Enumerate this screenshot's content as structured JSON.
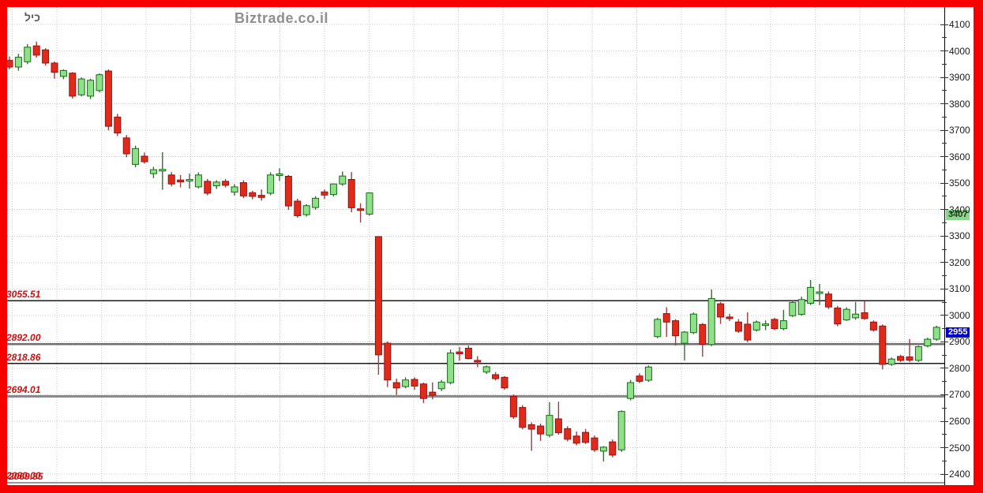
{
  "header": {
    "symbol": "כיל",
    "title": "Biztrade.co.il"
  },
  "axis": {
    "yticks": [
      4100,
      4000,
      3900,
      3800,
      3700,
      3600,
      3500,
      3400,
      3300,
      3200,
      3100,
      3000,
      2900,
      2800,
      2700,
      2600,
      2500,
      2400
    ],
    "minor_tick_step": 50,
    "last_price_badge": {
      "value": "2955",
      "bg": "#0000cc",
      "fg": "#ffffff"
    },
    "level_badge": {
      "value": "3407",
      "bg": "#8ed48e",
      "fg": "#1c3a1c"
    }
  },
  "support_levels": [
    {
      "label": "3055.51",
      "price": 3055.51,
      "color": "#1a1a1a",
      "width": 1.2
    },
    {
      "label": "2892.00",
      "price": 2892.0,
      "color": "#6e6e6e",
      "width": 2.6
    },
    {
      "label": "2818.86",
      "price": 2818.86,
      "color": "#1a1a1a",
      "width": 1.4
    },
    {
      "label": "2694.01",
      "price": 2694.01,
      "color": "#8a8a8a",
      "width": 3
    }
  ],
  "bottom_labels": [
    "2080.00",
    "2069.85"
  ],
  "colors": {
    "up_fill": "#90e08a",
    "up_border": "#156d15",
    "up_wick": "#3a6b3a",
    "down_fill": "#e02a1a",
    "down_border": "#991111",
    "down_wick": "#994040",
    "grid": "#c9c9c9",
    "frame": "#f70000",
    "label_red": "#cc1111"
  },
  "chart_data": {
    "type": "candlestick",
    "title": "Biztrade.co.il",
    "symbol": "כיל",
    "last_price": 2955,
    "ylim": [
      2400,
      4100
    ],
    "yticks": [
      2400,
      2500,
      2600,
      2700,
      2800,
      2900,
      3000,
      3100,
      3200,
      3300,
      3400,
      3500,
      3600,
      3700,
      3800,
      3900,
      4000,
      4100
    ],
    "grid": true,
    "legend": "none",
    "xlabels_visible": false,
    "support_lines": [
      3055.51,
      2892.0,
      2818.86,
      2694.01
    ],
    "candles_format": [
      "open",
      "high",
      "low",
      "close"
    ],
    "candles": [
      [
        3964,
        3979,
        3930,
        3939
      ],
      [
        3939,
        3989,
        3925,
        3976
      ],
      [
        3959,
        4026,
        3950,
        4014
      ],
      [
        4019,
        4035,
        3975,
        3984
      ],
      [
        4004,
        4010,
        3945,
        3954
      ],
      [
        3954,
        3960,
        3895,
        3919
      ],
      [
        3904,
        3930,
        3893,
        3926
      ],
      [
        3916,
        3920,
        3820,
        3829
      ],
      [
        3834,
        3900,
        3828,
        3894
      ],
      [
        3829,
        3895,
        3818,
        3889
      ],
      [
        3850,
        3915,
        3843,
        3910
      ],
      [
        3924,
        3930,
        3700,
        3715
      ],
      [
        3750,
        3762,
        3678,
        3690
      ],
      [
        3671,
        3682,
        3598,
        3611
      ],
      [
        3571,
        3642,
        3560,
        3631
      ],
      [
        3602,
        3616,
        3574,
        3581
      ],
      [
        3536,
        3562,
        3519,
        3551
      ],
      [
        3548,
        3617,
        3475,
        3549
      ],
      [
        3531,
        3542,
        3488,
        3497
      ],
      [
        3512,
        3531,
        3484,
        3505
      ],
      [
        3510,
        3536,
        3479,
        3511
      ],
      [
        3486,
        3541,
        3480,
        3531
      ],
      [
        3507,
        3516,
        3454,
        3462
      ],
      [
        3490,
        3511,
        3478,
        3504
      ],
      [
        3507,
        3516,
        3484,
        3492
      ],
      [
        3466,
        3496,
        3453,
        3486
      ],
      [
        3502,
        3511,
        3444,
        3452
      ],
      [
        3464,
        3471,
        3439,
        3450
      ],
      [
        3454,
        3476,
        3434,
        3446
      ],
      [
        3462,
        3541,
        3454,
        3531
      ],
      [
        3530,
        3556,
        3508,
        3532
      ],
      [
        3526,
        3531,
        3399,
        3414
      ],
      [
        3432,
        3441,
        3369,
        3377
      ],
      [
        3381,
        3421,
        3374,
        3415
      ],
      [
        3408,
        3451,
        3399,
        3443
      ],
      [
        3467,
        3476,
        3440,
        3455
      ],
      [
        3457,
        3499,
        3450,
        3497
      ],
      [
        3497,
        3544,
        3490,
        3527
      ],
      [
        3514,
        3542,
        3390,
        3407
      ],
      [
        3400,
        3424,
        3351,
        3396
      ],
      [
        3383,
        3465,
        3377,
        3463
      ],
      [
        3298,
        3298,
        2776,
        2851
      ],
      [
        2895,
        2901,
        2729,
        2756
      ],
      [
        2746,
        2761,
        2699,
        2726
      ],
      [
        2731,
        2766,
        2724,
        2756
      ],
      [
        2758,
        2766,
        2719,
        2733
      ],
      [
        2741,
        2746,
        2669,
        2686
      ],
      [
        2710,
        2747,
        2683,
        2698
      ],
      [
        2723,
        2756,
        2714,
        2748
      ],
      [
        2746,
        2871,
        2739,
        2858
      ],
      [
        2862,
        2881,
        2829,
        2855
      ],
      [
        2876,
        2886,
        2834,
        2837
      ],
      [
        2827,
        2846,
        2804,
        2824
      ],
      [
        2786,
        2811,
        2779,
        2806
      ],
      [
        2776,
        2786,
        2754,
        2761
      ],
      [
        2766,
        2771,
        2719,
        2726
      ],
      [
        2694,
        2701,
        2609,
        2617
      ],
      [
        2652,
        2661,
        2569,
        2577
      ],
      [
        2587,
        2596,
        2488,
        2570
      ],
      [
        2582,
        2591,
        2526,
        2552
      ],
      [
        2547,
        2672,
        2539,
        2622
      ],
      [
        2609,
        2674,
        2549,
        2557
      ],
      [
        2572,
        2581,
        2524,
        2532
      ],
      [
        2544,
        2561,
        2509,
        2517
      ],
      [
        2558,
        2571,
        2514,
        2520
      ],
      [
        2537,
        2546,
        2484,
        2492
      ],
      [
        2487,
        2506,
        2448,
        2502
      ],
      [
        2522,
        2531,
        2464,
        2472
      ],
      [
        2492,
        2641,
        2484,
        2637
      ],
      [
        2686,
        2756,
        2679,
        2746
      ],
      [
        2771,
        2781,
        2744,
        2751
      ],
      [
        2755,
        2811,
        2749,
        2805
      ],
      [
        2920,
        2991,
        2914,
        2985
      ],
      [
        3007,
        3031,
        2919,
        2975
      ],
      [
        2980,
        2986,
        2886,
        2923
      ],
      [
        2895,
        2941,
        2830,
        2937
      ],
      [
        2935,
        3011,
        2929,
        3005
      ],
      [
        2966,
        2971,
        2844,
        2891
      ],
      [
        2890,
        3098,
        2884,
        3064
      ],
      [
        3044,
        3051,
        2968,
        2994
      ],
      [
        2991,
        3006,
        2979,
        2988
      ],
      [
        2975,
        2986,
        2934,
        2940
      ],
      [
        2967,
        3012,
        2899,
        2907
      ],
      [
        2945,
        2981,
        2939,
        2975
      ],
      [
        2963,
        2981,
        2944,
        2965
      ],
      [
        2985,
        2991,
        2944,
        2950
      ],
      [
        2950,
        3021,
        2944,
        2980
      ],
      [
        2999,
        3056,
        2994,
        3049
      ],
      [
        3004,
        3071,
        2999,
        3060
      ],
      [
        3046,
        3134,
        3039,
        3106
      ],
      [
        3084,
        3119,
        3039,
        3086
      ],
      [
        3081,
        3091,
        3024,
        3032
      ],
      [
        3028,
        3036,
        2959,
        2968
      ],
      [
        2983,
        3031,
        2979,
        3023
      ],
      [
        2991,
        3051,
        2984,
        3005
      ],
      [
        3010,
        3054,
        2984,
        2988
      ],
      [
        2975,
        2981,
        2939,
        2945
      ],
      [
        2960,
        2966,
        2796,
        2815
      ],
      [
        2815,
        2841,
        2809,
        2835
      ],
      [
        2845,
        2851,
        2824,
        2830
      ],
      [
        2843,
        2911,
        2824,
        2831
      ],
      [
        2830,
        2886,
        2824,
        2882
      ],
      [
        2885,
        2916,
        2879,
        2910
      ],
      [
        2910,
        2961,
        2904,
        2955
      ]
    ]
  }
}
